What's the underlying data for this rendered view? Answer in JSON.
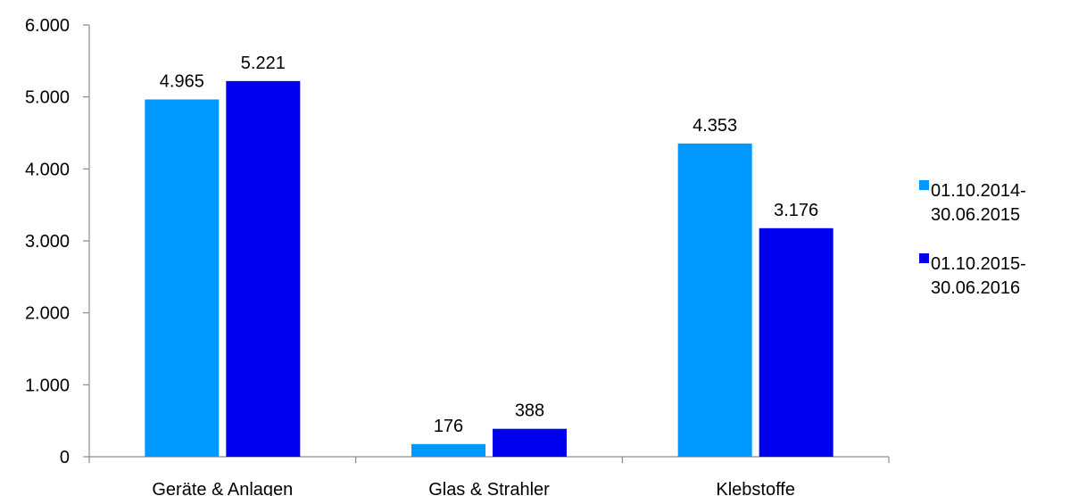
{
  "chart_data": {
    "type": "bar",
    "title": "",
    "xlabel": "",
    "ylabel": "",
    "categories": [
      "Geräte & Anlagen",
      "Glas & Strahler",
      "Klebstoffe"
    ],
    "series": [
      {
        "name": "01.10.2014-\n30.06.2015",
        "legend_lines": [
          "01.10.2014-",
          "30.06.2015"
        ],
        "color": "#0099ff",
        "values": [
          4965,
          176,
          4353
        ],
        "labels": [
          "4.965",
          "176",
          "4.353"
        ]
      },
      {
        "name": "01.10.2015-\n30.06.2016",
        "legend_lines": [
          "01.10.2015-",
          "30.06.2016"
        ],
        "color": "#0000ee",
        "values": [
          5221,
          388,
          3176
        ],
        "labels": [
          "5.221",
          "388",
          "3.176"
        ]
      }
    ],
    "ylim": [
      0,
      6000
    ],
    "yticks": [
      0,
      1000,
      2000,
      3000,
      4000,
      5000,
      6000
    ],
    "ytick_labels": [
      "0",
      "1.000",
      "2.000",
      "3.000",
      "4.000",
      "5.000",
      "6.000"
    ],
    "grid": false,
    "legend_position": "right"
  }
}
